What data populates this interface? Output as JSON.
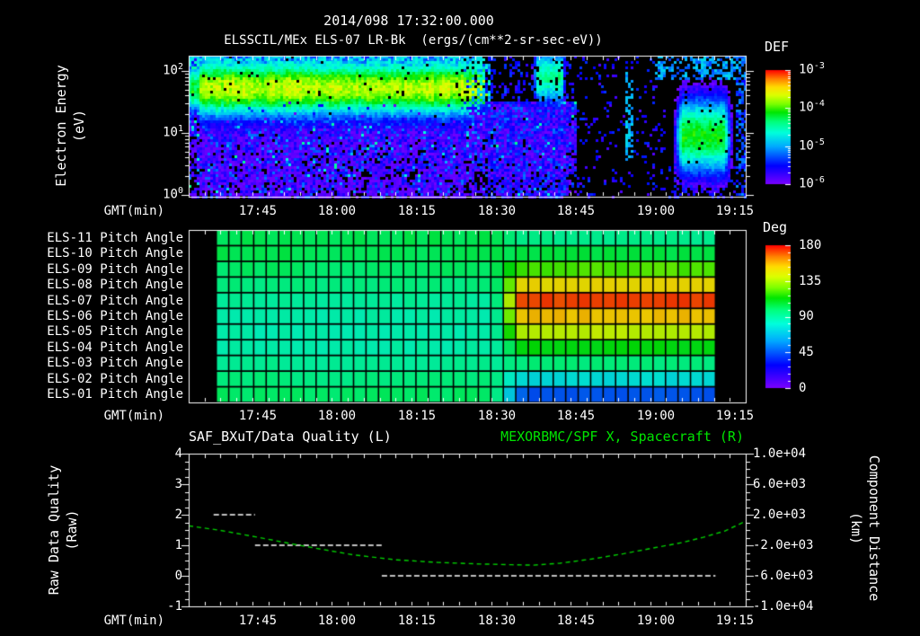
{
  "page": {
    "background": "#000000",
    "text_color": "#ffffff",
    "accent_green": "#00e400"
  },
  "header": {
    "title_datetime": "2014/098 17:32:00.000",
    "title_instrument": "ELSSCIL/MEx ELS-07 LR-Bk  (ergs/(cm**2-sr-sec-eV))"
  },
  "axes": {
    "gmt_label": "GMT(min)",
    "time_labels": [
      "17:45",
      "18:00",
      "18:15",
      "18:30",
      "18:45",
      "19:00",
      "19:15"
    ],
    "time_start": "17:32:00",
    "time_span_min": 105
  },
  "top_panel": {
    "ylabel_line1": "Electron Energy",
    "ylabel_line2": "(eV)",
    "ytick_labels": [
      {
        "base": "10",
        "exp": "2"
      },
      {
        "base": "10",
        "exp": "1"
      },
      {
        "base": "10",
        "exp": "0"
      }
    ],
    "colorbar": {
      "label": "DEF",
      "tick_labels": [
        {
          "base": "10",
          "exp": "-3"
        },
        {
          "base": "10",
          "exp": "-4"
        },
        {
          "base": "10",
          "exp": "-5"
        },
        {
          "base": "10",
          "exp": "-6"
        }
      ]
    }
  },
  "pitch_panel": {
    "row_labels": [
      "ELS-11 Pitch Angle",
      "ELS-10 Pitch Angle",
      "ELS-09 Pitch Angle",
      "ELS-08 Pitch Angle",
      "ELS-07 Pitch Angle",
      "ELS-06 Pitch Angle",
      "ELS-05 Pitch Angle",
      "ELS-04 Pitch Angle",
      "ELS-03 Pitch Angle",
      "ELS-02 Pitch Angle",
      "ELS-01 Pitch Angle"
    ],
    "colorbar": {
      "label": "Deg",
      "tick_labels": [
        "180",
        "135",
        "90",
        "45",
        "0"
      ]
    }
  },
  "bottom_panel": {
    "title_left": "SAF_BXuT/Data Quality (L)",
    "title_right": "MEXORBMC/SPF X, Spacecraft (R)",
    "ylabel_left_line1": "Raw Data Quality",
    "ylabel_left_line2": "(Raw)",
    "ylabel_right_line1": "Component Distance",
    "ylabel_right_line2": "(km)",
    "left_tick_labels": [
      "4",
      "3",
      "2",
      "1",
      "0",
      "-1"
    ],
    "right_tick_labels": [
      "1.0e+04",
      "6.0e+03",
      "2.0e+03",
      "-2.0e+03",
      "-6.0e+03",
      "-1.0e+04"
    ]
  },
  "chart_data": [
    {
      "type": "heatmap",
      "name": "electron_energy_spectrogram",
      "title": "ELSSCIL/MEx ELS-07 LR-Bk",
      "units": "ergs/(cm**2-sr-sec-eV)",
      "x_axis": {
        "label": "GMT(min)",
        "start": "17:32",
        "end": "19:17",
        "tick_labels": [
          "17:45",
          "18:00",
          "18:15",
          "18:30",
          "18:45",
          "19:00",
          "19:15"
        ]
      },
      "y_axis": {
        "label": "Electron Energy (eV)",
        "scale": "log",
        "range_eV": [
          1,
          170
        ]
      },
      "colorbar": {
        "label": "DEF",
        "scale": "log",
        "range": [
          1e-06,
          0.001
        ]
      },
      "features": {
        "band": {
          "desc": "bright green-yellow flux band 20-100 eV from start until ~18:36",
          "t0": 0,
          "t1": 56.5,
          "logE_center": 1.72,
          "sigma": 0.3,
          "peak_logf": -3.8
        },
        "noise_floor": {
          "desc": "speckled blue/violet noise below ~30 eV until ~18:45",
          "t_max": 73,
          "logE_max": 1.5,
          "logf": -5.9
        },
        "streaks": {
          "desc": "patchy cyan vertical streaks",
          "t0": 52,
          "t1": 57.5,
          "logE_center": 1.8
        },
        "cyan_blob": {
          "desc": "bright cyan patch at high energy near 18:38-18:43",
          "t0": 64.5,
          "t1": 71.5,
          "logE_center": 1.9,
          "sigma": 0.38,
          "peak_logf": -4.55
        },
        "dark_zone": {
          "desc": "mostly black with sparse blue dots 18:44-19:02",
          "t0": 71.5,
          "t1": 90,
          "density": 0.1
        },
        "faint_line_t": 83,
        "green_patch": {
          "desc": "green flux patch 3-30 eV near 19:04-19:15",
          "t0": 91,
          "t1": 103,
          "logE_center": 0.95,
          "sigma": 0.5,
          "peak_logf": -4.2
        },
        "topright_speckle": {
          "desc": "blue speckle at top energies after ~19:00",
          "t0": 88,
          "logE_min": 1.85,
          "logf": -5.5,
          "density": 0.5
        }
      }
    },
    {
      "type": "heatmap",
      "name": "pitch_angle_panels",
      "rows": [
        {
          "label": "ELS-11 Pitch Angle",
          "deg_before": 103,
          "deg_after": 94
        },
        {
          "label": "ELS-10 Pitch Angle",
          "deg_before": 103,
          "deg_after": 105
        },
        {
          "label": "ELS-09 Pitch Angle",
          "deg_before": 100,
          "deg_after": 122
        },
        {
          "label": "ELS-08 Pitch Angle",
          "deg_before": 96,
          "deg_after": 150
        },
        {
          "label": "ELS-07 Pitch Angle",
          "deg_before": 91,
          "deg_after": 172
        },
        {
          "label": "ELS-06 Pitch Angle",
          "deg_before": 88,
          "deg_after": 155
        },
        {
          "label": "ELS-05 Pitch Angle",
          "deg_before": 87,
          "deg_after": 137
        },
        {
          "label": "ELS-04 Pitch Angle",
          "deg_before": 88,
          "deg_after": 112
        },
        {
          "label": "ELS-03 Pitch Angle",
          "deg_before": 92,
          "deg_after": 97
        },
        {
          "label": "ELS-02 Pitch Angle",
          "deg_before": 96,
          "deg_after": 76
        },
        {
          "label": "ELS-01 Pitch Angle",
          "deg_before": 100,
          "deg_after": 45
        }
      ],
      "data_window": {
        "t_start_min": 5.2,
        "t_end_min": 99.3,
        "t_start": "17:37",
        "t_end": "19:11"
      },
      "transition": {
        "t0_min": 57,
        "t1_min": 63.5,
        "start": "18:29",
        "end": "18:36"
      },
      "columns": 40,
      "colorbar": {
        "label": "Deg",
        "range": [
          0,
          180
        ],
        "tick_values": [
          180,
          135,
          90,
          45,
          0
        ]
      }
    },
    {
      "type": "line",
      "name": "quality_and_spacecraft_position",
      "series": [
        {
          "name": "SAF_BXuT/Data Quality (L)",
          "axis": "left",
          "color": "#ffffff",
          "style": "dashed",
          "steps": [
            {
              "t0_min": 4.7,
              "t1_min": 12.5,
              "t_start": "17:37",
              "t_end": "17:45",
              "value": 2
            },
            {
              "t0_min": 12.5,
              "t1_min": 36.4,
              "t_start": "17:45",
              "t_end": "18:08",
              "value": 1
            },
            {
              "t0_min": 36.4,
              "t1_min": 99.3,
              "t_start": "18:08",
              "t_end": "19:11",
              "value": 0
            }
          ]
        },
        {
          "name": "MEXORBMC/SPF X, Spacecraft (R)",
          "axis": "right",
          "color": "#00d000",
          "style": "dashed",
          "points_min_km": [
            [
              0,
              550
            ],
            [
              6,
              -50
            ],
            [
              13,
              -950
            ],
            [
              22,
              -2150
            ],
            [
              31,
              -3250
            ],
            [
              39,
              -3900
            ],
            [
              47,
              -4250
            ],
            [
              55,
              -4450
            ],
            [
              61,
              -4550
            ],
            [
              65,
              -4600
            ],
            [
              70,
              -4350
            ],
            [
              76,
              -3800
            ],
            [
              82,
              -3100
            ],
            [
              88,
              -2300
            ],
            [
              93,
              -1650
            ],
            [
              97,
              -950
            ],
            [
              101,
              -150
            ],
            [
              103,
              500
            ],
            [
              105,
              1150
            ]
          ]
        }
      ],
      "left_axis": {
        "label": "Raw Data Quality (Raw)",
        "range": [
          -1,
          4
        ],
        "major_step": 1
      },
      "right_axis": {
        "label": "Component Distance (km)",
        "range": [
          -10000,
          10000
        ],
        "major_step": 4000
      }
    }
  ]
}
